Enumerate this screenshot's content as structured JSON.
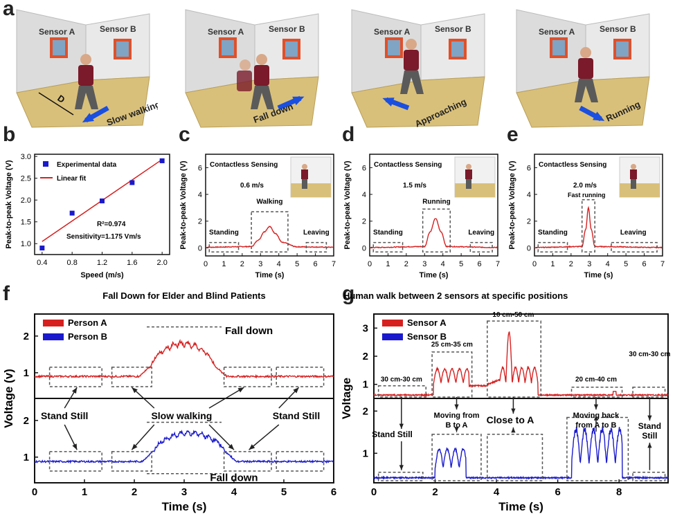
{
  "panels": {
    "a": "a",
    "b": "b",
    "c": "c",
    "d": "d",
    "e": "e",
    "f": "f",
    "g": "g"
  },
  "scenes": [
    {
      "sensor_a": "Sensor A",
      "sensor_b": "Sensor B",
      "caption": "Slow walking",
      "distance_label": "D"
    },
    {
      "sensor_a": "Sensor A",
      "sensor_b": "Sensor B",
      "caption": "Fall down"
    },
    {
      "sensor_a": "Sensor A",
      "sensor_b": "Sensor B",
      "caption": "Approaching"
    },
    {
      "sensor_a": "Sensor A",
      "sensor_b": "Sensor B",
      "caption": "Running"
    }
  ],
  "colors": {
    "red": "#d62020",
    "blue": "#1a1acc",
    "arrow_blue": "#1a4fe0",
    "floor": "#d9c07a",
    "wall": "#e9e9e9",
    "frame": "#e0502a",
    "window": "#7fa4c4",
    "shirt": "#7a1a2a",
    "pants": "#5a5a5a"
  },
  "chart_data": [
    {
      "id": "b",
      "type": "scatter",
      "xlabel": "Speed (m/s)",
      "ylabel": "Peak-to-peak Voltage (V)",
      "xlim": [
        0.3,
        2.1
      ],
      "ylim": [
        0.75,
        3.05
      ],
      "xticks": [
        "0.4",
        "0.8",
        "1.2",
        "1.6",
        "2.0"
      ],
      "yticks": [
        "1.0",
        "1.5",
        "2.0",
        "2.5",
        "3.0"
      ],
      "series": [
        {
          "name": "Experimental data",
          "x": [
            0.4,
            0.8,
            1.2,
            1.6,
            2.0
          ],
          "y": [
            0.9,
            1.7,
            1.98,
            2.4,
            2.9
          ]
        },
        {
          "name": "Linear fit",
          "x": [
            0.4,
            2.0
          ],
          "y": [
            1.05,
            2.93
          ]
        }
      ],
      "annotations": [
        "R²=0.974",
        "Sensitivity=1.175 Vm/s"
      ]
    },
    {
      "id": "c",
      "type": "line",
      "xlabel": "Time (s)",
      "ylabel": "Peak-to-peak Voltage (V)",
      "xlim": [
        0,
        7
      ],
      "ylim": [
        -0.6,
        7
      ],
      "xticks": [
        "0",
        "1",
        "2",
        "3",
        "4",
        "5",
        "6",
        "7"
      ],
      "yticks": [
        "0",
        "2",
        "4",
        "6"
      ],
      "title": "Contactless Sensing",
      "speed": "0.6 m/s",
      "boxes": [
        "Standing",
        "Walking",
        "Leaving"
      ],
      "series": [
        {
          "x": [
            0,
            2.5,
            2.9,
            3.2,
            3.5,
            3.8,
            4.2,
            5.0,
            7.0
          ],
          "y": [
            0.05,
            0.1,
            0.6,
            1.2,
            1.6,
            1.1,
            0.4,
            0.08,
            0.05
          ]
        }
      ]
    },
    {
      "id": "d",
      "type": "line",
      "xlabel": "Time (s)",
      "ylabel": "Peak-to-peak Voltage (V)",
      "xlim": [
        0,
        7
      ],
      "ylim": [
        -0.6,
        7
      ],
      "xticks": [
        "0",
        "1",
        "2",
        "3",
        "4",
        "5",
        "6",
        "7"
      ],
      "yticks": [
        "0",
        "2",
        "4",
        "6"
      ],
      "title": "Contactless Sensing",
      "speed": "1.5 m/s",
      "boxes": [
        "Standing",
        "Running",
        "Leaving"
      ],
      "series": [
        {
          "x": [
            0,
            3.0,
            3.3,
            3.6,
            3.9,
            4.2,
            7.0
          ],
          "y": [
            0.03,
            0.1,
            1.2,
            2.2,
            1.2,
            0.1,
            0.03
          ]
        }
      ]
    },
    {
      "id": "e",
      "type": "line",
      "xlabel": "Time (s)",
      "ylabel": "Peak-to-peak Voltage (V)",
      "xlim": [
        0,
        7
      ],
      "ylim": [
        -0.6,
        7
      ],
      "xticks": [
        "0",
        "1",
        "2",
        "3",
        "4",
        "5",
        "6",
        "7"
      ],
      "yticks": [
        "0",
        "2",
        "4",
        "6"
      ],
      "title": "Contactless Sensing",
      "speed": "2.0 m/s",
      "speed_note": "Fast running",
      "boxes": [
        "Standing",
        "Leaving"
      ],
      "series": [
        {
          "x": [
            0,
            2.6,
            2.8,
            2.95,
            3.1,
            3.3,
            7.0
          ],
          "y": [
            0.03,
            0.1,
            1.4,
            3.0,
            1.4,
            0.1,
            0.03
          ]
        }
      ]
    },
    {
      "id": "f",
      "type": "line",
      "title": "Fall Down for Elder and Blind Patients",
      "xlabel": "Time (s)",
      "ylabel": "Voltage (v)",
      "xlim": [
        0,
        6
      ],
      "xticks": [
        "0",
        "1",
        "2",
        "3",
        "4",
        "5",
        "6"
      ],
      "ylim_top": [
        0.3,
        2.6
      ],
      "ylim_bottom": [
        0.3,
        2.6
      ],
      "yticks": [
        "1",
        "2"
      ],
      "series": [
        {
          "name": "Person A",
          "color": "red",
          "level": 0.9,
          "peak_start": 2.35,
          "peak_end": 3.6,
          "peak": 1.85
        },
        {
          "name": "Person B",
          "color": "blue",
          "level": 0.88,
          "peak_start": 2.4,
          "peak_end": 3.8,
          "peak": 1.7
        }
      ],
      "annotations": {
        "fall_down": "Fall down",
        "stand_still_left": "Stand Still",
        "slow_walking": "Slow walking",
        "stand_still_right": "Stand Still"
      }
    },
    {
      "id": "g",
      "type": "line",
      "title": "Human walk between 2 sensors at specific positions",
      "xlabel": "Time (s)",
      "ylabel": "Voltage",
      "xlim": [
        0,
        9.6
      ],
      "xticks": [
        "0",
        "2",
        "4",
        "6",
        "8"
      ],
      "ylim_top": [
        0.5,
        3.5
      ],
      "yticks_top": [
        "1",
        "2",
        "3"
      ],
      "ylim_bottom": [
        0.3,
        2.3
      ],
      "yticks_bottom": [
        "1",
        "2"
      ],
      "series": [
        {
          "name": "Sensor A",
          "color": "red"
        },
        {
          "name": "Sensor B",
          "color": "blue"
        }
      ],
      "annotations": {
        "top": [
          "30 cm-30 cm",
          "25 cm-35 cm",
          "10 cm-50 cm",
          "20 cm-40 cm",
          "30 cm-30 cm"
        ],
        "bottom": [
          "Stand Still",
          "Moving from",
          "B to A",
          "Close to A",
          "Moving back",
          "from A to B",
          "Stand",
          "Still"
        ]
      }
    }
  ]
}
